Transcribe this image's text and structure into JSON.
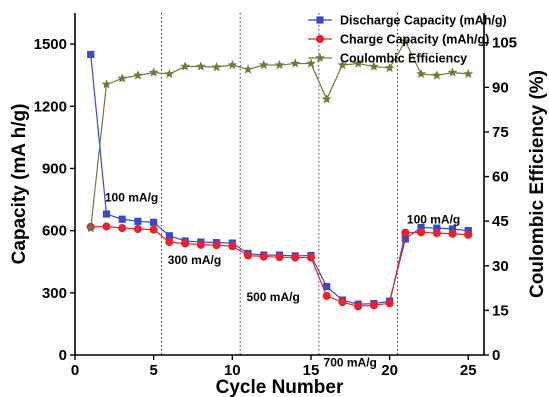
{
  "chart_data": {
    "type": "line",
    "title": "",
    "xlabel": "Cycle Number",
    "ylabel_left": "Capacity (mA h/g)",
    "ylabel_right": "Coulombic Efficiency (%)",
    "xlim": [
      0,
      26
    ],
    "ylim_left": [
      0,
      1650
    ],
    "ylim_right": [
      0,
      115
    ],
    "x_ticks": [
      0,
      5,
      10,
      15,
      20,
      25
    ],
    "y_ticks_left": [
      0,
      300,
      600,
      900,
      1200,
      1500
    ],
    "y_ticks_right": [
      0,
      15,
      30,
      45,
      60,
      75,
      90,
      105
    ],
    "grid": false,
    "legend_position": "top-right",
    "rate_separators": [
      5.5,
      10.5,
      15.5,
      20.5
    ],
    "annotations": [
      {
        "text": "100 mA/g",
        "x": 1.9,
        "y": 740
      },
      {
        "text": "300 mA/g",
        "x": 5.9,
        "y": 440
      },
      {
        "text": "500 mA/g",
        "x": 10.9,
        "y": 260
      },
      {
        "text": "700 mA/g",
        "x": 15.8,
        "y": -55
      },
      {
        "text": "100 mA/g",
        "x": 21.1,
        "y": 635
      }
    ],
    "series": [
      {
        "name": "Discharge Capacity (mAh/g)",
        "axis": "left",
        "color": "#3a49c9",
        "marker": "square",
        "x": [
          1,
          2,
          3,
          4,
          5,
          6,
          7,
          8,
          9,
          10,
          11,
          12,
          13,
          14,
          15,
          16,
          17,
          18,
          19,
          20,
          21,
          22,
          23,
          24,
          25
        ],
        "values": [
          1450,
          680,
          655,
          645,
          640,
          575,
          550,
          545,
          542,
          540,
          490,
          482,
          482,
          478,
          480,
          330,
          265,
          245,
          248,
          260,
          560,
          615,
          612,
          608,
          600
        ]
      },
      {
        "name": "Charge Capacity (mAh/g)",
        "axis": "left",
        "color": "#e8232d",
        "marker": "circle",
        "x": [
          1,
          2,
          3,
          4,
          5,
          6,
          7,
          8,
          9,
          10,
          11,
          12,
          13,
          14,
          15,
          16,
          17,
          18,
          19,
          20,
          21,
          22,
          23,
          24,
          25
        ],
        "values": [
          618,
          620,
          612,
          608,
          605,
          545,
          538,
          532,
          530,
          525,
          480,
          475,
          472,
          470,
          470,
          285,
          255,
          235,
          240,
          250,
          590,
          592,
          588,
          585,
          580
        ]
      },
      {
        "name": "Coulombic Efficiency",
        "axis": "right",
        "color": "#6f7a3a",
        "marker": "star",
        "x": [
          1,
          2,
          3,
          4,
          5,
          6,
          7,
          8,
          9,
          10,
          11,
          12,
          13,
          14,
          15,
          16,
          17,
          18,
          19,
          20,
          21,
          22,
          23,
          24,
          25
        ],
        "values": [
          42.6,
          91,
          93,
          94,
          95,
          94.5,
          97,
          97,
          96.8,
          97.5,
          96,
          97.5,
          97.5,
          98,
          98,
          86,
          97.5,
          98,
          97,
          96.5,
          105.5,
          94.5,
          94,
          95,
          94.5
        ]
      }
    ]
  }
}
